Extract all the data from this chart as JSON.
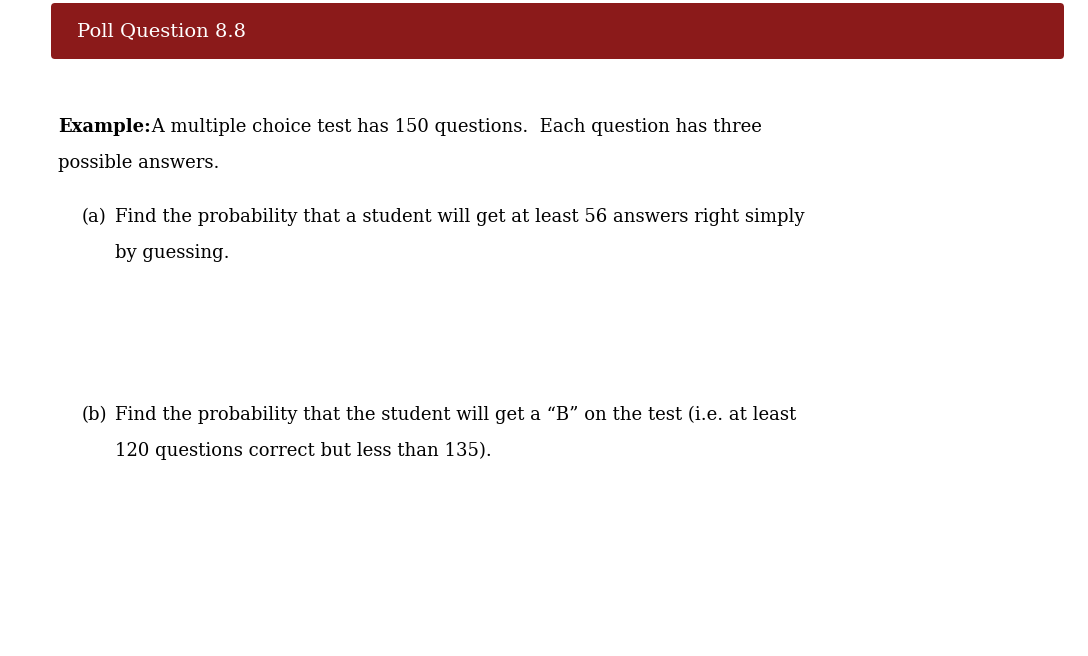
{
  "title": "Poll Question 8.8",
  "title_bg_color": "#8B1A1A",
  "title_text_color": "#FFFFFF",
  "background_color": "#FFFFFF",
  "sidebar_color": "#3D3D3D",
  "font_family": "serif",
  "title_fontsize": 14,
  "body_fontsize": 13,
  "fig_width": 10.88,
  "fig_height": 6.56,
  "example_bold": "Example:",
  "example_rest": " A multiple choice test has 150 questions.  Each question has three",
  "example_line2": "possible answers.",
  "part_a_label": "(a)",
  "part_a_line1": "Find the probability that a student will get at least 56 answers right simply",
  "part_a_line2": "by guessing.",
  "part_b_label": "(b)",
  "part_b_line1": "Find the probability that the student will get a “B” on the test (i.e. at least",
  "part_b_line2": "120 questions correct but less than 135)."
}
